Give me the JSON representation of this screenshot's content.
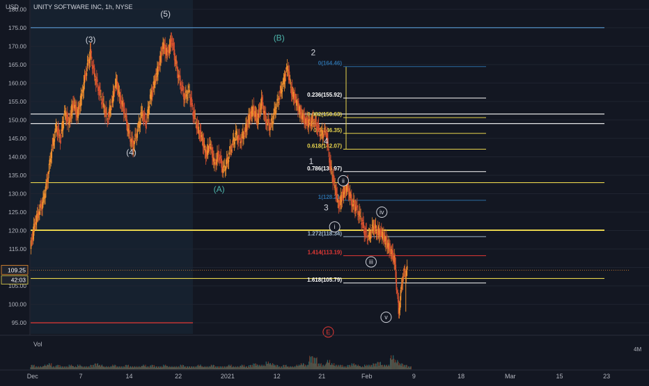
{
  "header": {
    "currency": "USD",
    "title": "UNITY SOFTWARE INC, 1h, NYSE"
  },
  "chart_data": {
    "type": "candlestick",
    "symbol": "UNITY SOFTWARE INC",
    "interval": "1h",
    "exchange": "NYSE",
    "y_axis_label": "USD",
    "ylim": [
      92,
      181
    ],
    "y_ticks": [
      "180.00",
      "175.00",
      "170.00",
      "165.00",
      "160.00",
      "155.00",
      "150.00",
      "145.00",
      "140.00",
      "135.00",
      "130.00",
      "125.00",
      "120.00",
      "115.00",
      "110.00",
      "105.00",
      "100.00",
      "95.00"
    ],
    "y_tick_values": [
      180,
      175,
      170,
      165,
      160,
      155,
      150,
      145,
      140,
      135,
      130,
      125,
      120,
      115,
      110,
      105,
      100,
      95
    ],
    "x_ticks": [
      "Dec",
      "7",
      "14",
      "22",
      "2021",
      "12",
      "21",
      "Feb",
      "9",
      "18",
      "Mar",
      "15",
      "23"
    ],
    "x_tick_index": [
      0.45,
      11.7,
      23,
      34.5,
      46,
      57.5,
      68,
      78.5,
      89.5,
      100.5,
      112,
      123.5,
      134.5
    ],
    "last_price_label": "109.25",
    "last_price": 109.25,
    "countdown_label": "42:03",
    "price_path": [
      [
        0,
        115
      ],
      [
        1,
        122
      ],
      [
        2,
        125
      ],
      [
        3,
        128
      ],
      [
        4,
        134
      ],
      [
        5,
        142
      ],
      [
        6,
        148
      ],
      [
        7,
        145
      ],
      [
        8,
        152
      ],
      [
        9,
        149
      ],
      [
        10,
        155
      ],
      [
        11,
        151
      ],
      [
        12,
        157
      ],
      [
        13,
        163
      ],
      [
        14,
        168
      ],
      [
        15,
        162
      ],
      [
        16,
        158
      ],
      [
        17,
        154
      ],
      [
        18,
        150
      ],
      [
        19,
        155
      ],
      [
        20,
        160
      ],
      [
        21,
        156
      ],
      [
        22,
        152
      ],
      [
        23,
        146
      ],
      [
        24,
        143
      ],
      [
        25,
        147
      ],
      [
        26,
        152
      ],
      [
        27,
        149
      ],
      [
        28,
        156
      ],
      [
        29,
        160
      ],
      [
        30,
        165
      ],
      [
        31,
        170
      ],
      [
        32,
        168
      ],
      [
        33,
        172
      ],
      [
        34,
        165
      ],
      [
        35,
        160
      ],
      [
        36,
        156
      ],
      [
        37,
        158
      ],
      [
        38,
        152
      ],
      [
        39,
        148
      ],
      [
        40,
        145
      ],
      [
        41,
        141
      ],
      [
        42,
        143
      ],
      [
        43,
        138
      ],
      [
        44,
        141
      ],
      [
        45,
        136
      ],
      [
        46,
        139
      ],
      [
        47,
        143
      ],
      [
        48,
        146
      ],
      [
        49,
        144
      ],
      [
        50,
        147
      ],
      [
        51,
        150
      ],
      [
        52,
        153
      ],
      [
        53,
        150
      ],
      [
        54,
        155
      ],
      [
        55,
        150
      ],
      [
        56,
        148
      ],
      [
        57,
        152
      ],
      [
        58,
        156
      ],
      [
        59,
        160
      ],
      [
        60,
        164
      ],
      [
        61,
        158
      ],
      [
        62,
        155
      ],
      [
        63,
        152
      ],
      [
        64,
        150
      ],
      [
        65,
        149
      ],
      [
        66,
        150
      ],
      [
        67,
        148
      ],
      [
        68,
        146
      ],
      [
        69,
        147
      ],
      [
        70,
        138
      ],
      [
        71,
        132
      ],
      [
        72,
        127
      ],
      [
        73,
        130
      ],
      [
        74,
        132
      ],
      [
        75,
        128
      ],
      [
        76,
        126
      ],
      [
        77,
        124
      ],
      [
        78,
        120
      ],
      [
        79,
        118
      ],
      [
        80,
        121
      ],
      [
        81,
        120
      ],
      [
        82,
        119
      ],
      [
        83,
        117
      ],
      [
        84,
        115
      ],
      [
        85,
        112
      ],
      [
        86,
        98
      ],
      [
        87,
        108
      ],
      [
        88,
        109.25
      ]
    ],
    "volume_label": "Vol",
    "volume_axis_label": "4M",
    "volume_profile": [
      3,
      2,
      2,
      3,
      4,
      2,
      3,
      2,
      2,
      3,
      2,
      3,
      2,
      2,
      3,
      4,
      3,
      2,
      2,
      3,
      2,
      2,
      3,
      2,
      2,
      2,
      3,
      2,
      3,
      2,
      2,
      3,
      2,
      2,
      2,
      3,
      2,
      2,
      2,
      3,
      2,
      2,
      3,
      2,
      2,
      2,
      3,
      2,
      2,
      3,
      2,
      3,
      4,
      3,
      3,
      5,
      4,
      3,
      2,
      3,
      2,
      2,
      3,
      4,
      3,
      9,
      8,
      4,
      3,
      6,
      4,
      3,
      3,
      2,
      3,
      4,
      3,
      2,
      3,
      3,
      4,
      5,
      3,
      3,
      9,
      6,
      4,
      3,
      2
    ],
    "horizontal_levels": [
      {
        "price": 175.0,
        "color": "#5b9bd5"
      },
      {
        "price": 151.6,
        "color": "#ffffff"
      },
      {
        "price": 149.0,
        "color": "#ffffff"
      },
      {
        "price": 133.0,
        "color": "#e8d44d"
      },
      {
        "price": 120.1,
        "color": "#e8d44d"
      },
      {
        "price": 107.0,
        "color": "#e8d44d"
      },
      {
        "price": 95.0,
        "color": "#e53935"
      }
    ],
    "fib_levels": [
      {
        "label": "0(164.46)",
        "price": 164.46,
        "color": "#2b6ca3"
      },
      {
        "label": "0.236(155.92)",
        "price": 155.92,
        "color": "#ffffff"
      },
      {
        "label": "0.382(150.63)",
        "price": 150.63,
        "color": "#e8d44d"
      },
      {
        "label": "0.5(146.35)",
        "price": 146.35,
        "color": "#e8d44d"
      },
      {
        "label": "0.618(142.07)",
        "price": 142.07,
        "color": "#e8d44d"
      },
      {
        "label": "0.786(135.97)",
        "price": 135.97,
        "color": "#ffffff"
      },
      {
        "label": "1(128.21)",
        "price": 128.21,
        "color": "#2b6ca3"
      },
      {
        "label": "1.272(118.34)",
        "price": 118.34,
        "color": "#9fb7cc"
      },
      {
        "label": "1.414(113.19)",
        "price": 113.19,
        "color": "#e53935"
      },
      {
        "label": "1.618(105.79)",
        "price": 105.79,
        "color": "#ffffff"
      }
    ],
    "wave_labels": [
      {
        "text": "(3)",
        "index": 14,
        "price": 171.0,
        "color": "#d1d4dc"
      },
      {
        "text": "(4)",
        "index": 23.5,
        "price": 140.5,
        "color": "#d1d4dc"
      },
      {
        "text": "(5)",
        "index": 31.5,
        "price": 178.0,
        "color": "#d1d4dc"
      },
      {
        "text": "(A)",
        "index": 44,
        "price": 130.5,
        "color": "#4db6ac"
      },
      {
        "text": "(B)",
        "index": 58,
        "price": 171.5,
        "color": "#4db6ac"
      },
      {
        "text": "2",
        "index": 66,
        "price": 167.5,
        "color": "#d1d4dc"
      },
      {
        "text": "4",
        "index": 69,
        "price": 143.5,
        "color": "#d1d4dc"
      },
      {
        "text": "1",
        "index": 65.5,
        "price": 138.0,
        "color": "#d1d4dc"
      },
      {
        "text": "3",
        "index": 69,
        "price": 125.5,
        "color": "#d1d4dc"
      }
    ],
    "circled_wave_labels": [
      {
        "text": "ii",
        "index": 73,
        "price": 133.5,
        "color": "#d1d4dc"
      },
      {
        "text": "i",
        "index": 71,
        "price": 121.0,
        "color": "#d1d4dc"
      },
      {
        "text": "iv",
        "index": 82,
        "price": 125.0,
        "color": "#d1d4dc"
      },
      {
        "text": "iii",
        "index": 79.5,
        "price": 111.5,
        "color": "#d1d4dc"
      },
      {
        "text": "v",
        "index": 83,
        "price": 96.5,
        "color": "#d1d4dc"
      },
      {
        "text": "E",
        "index": 69.5,
        "price": 92.5,
        "color": "#e53935"
      }
    ]
  }
}
